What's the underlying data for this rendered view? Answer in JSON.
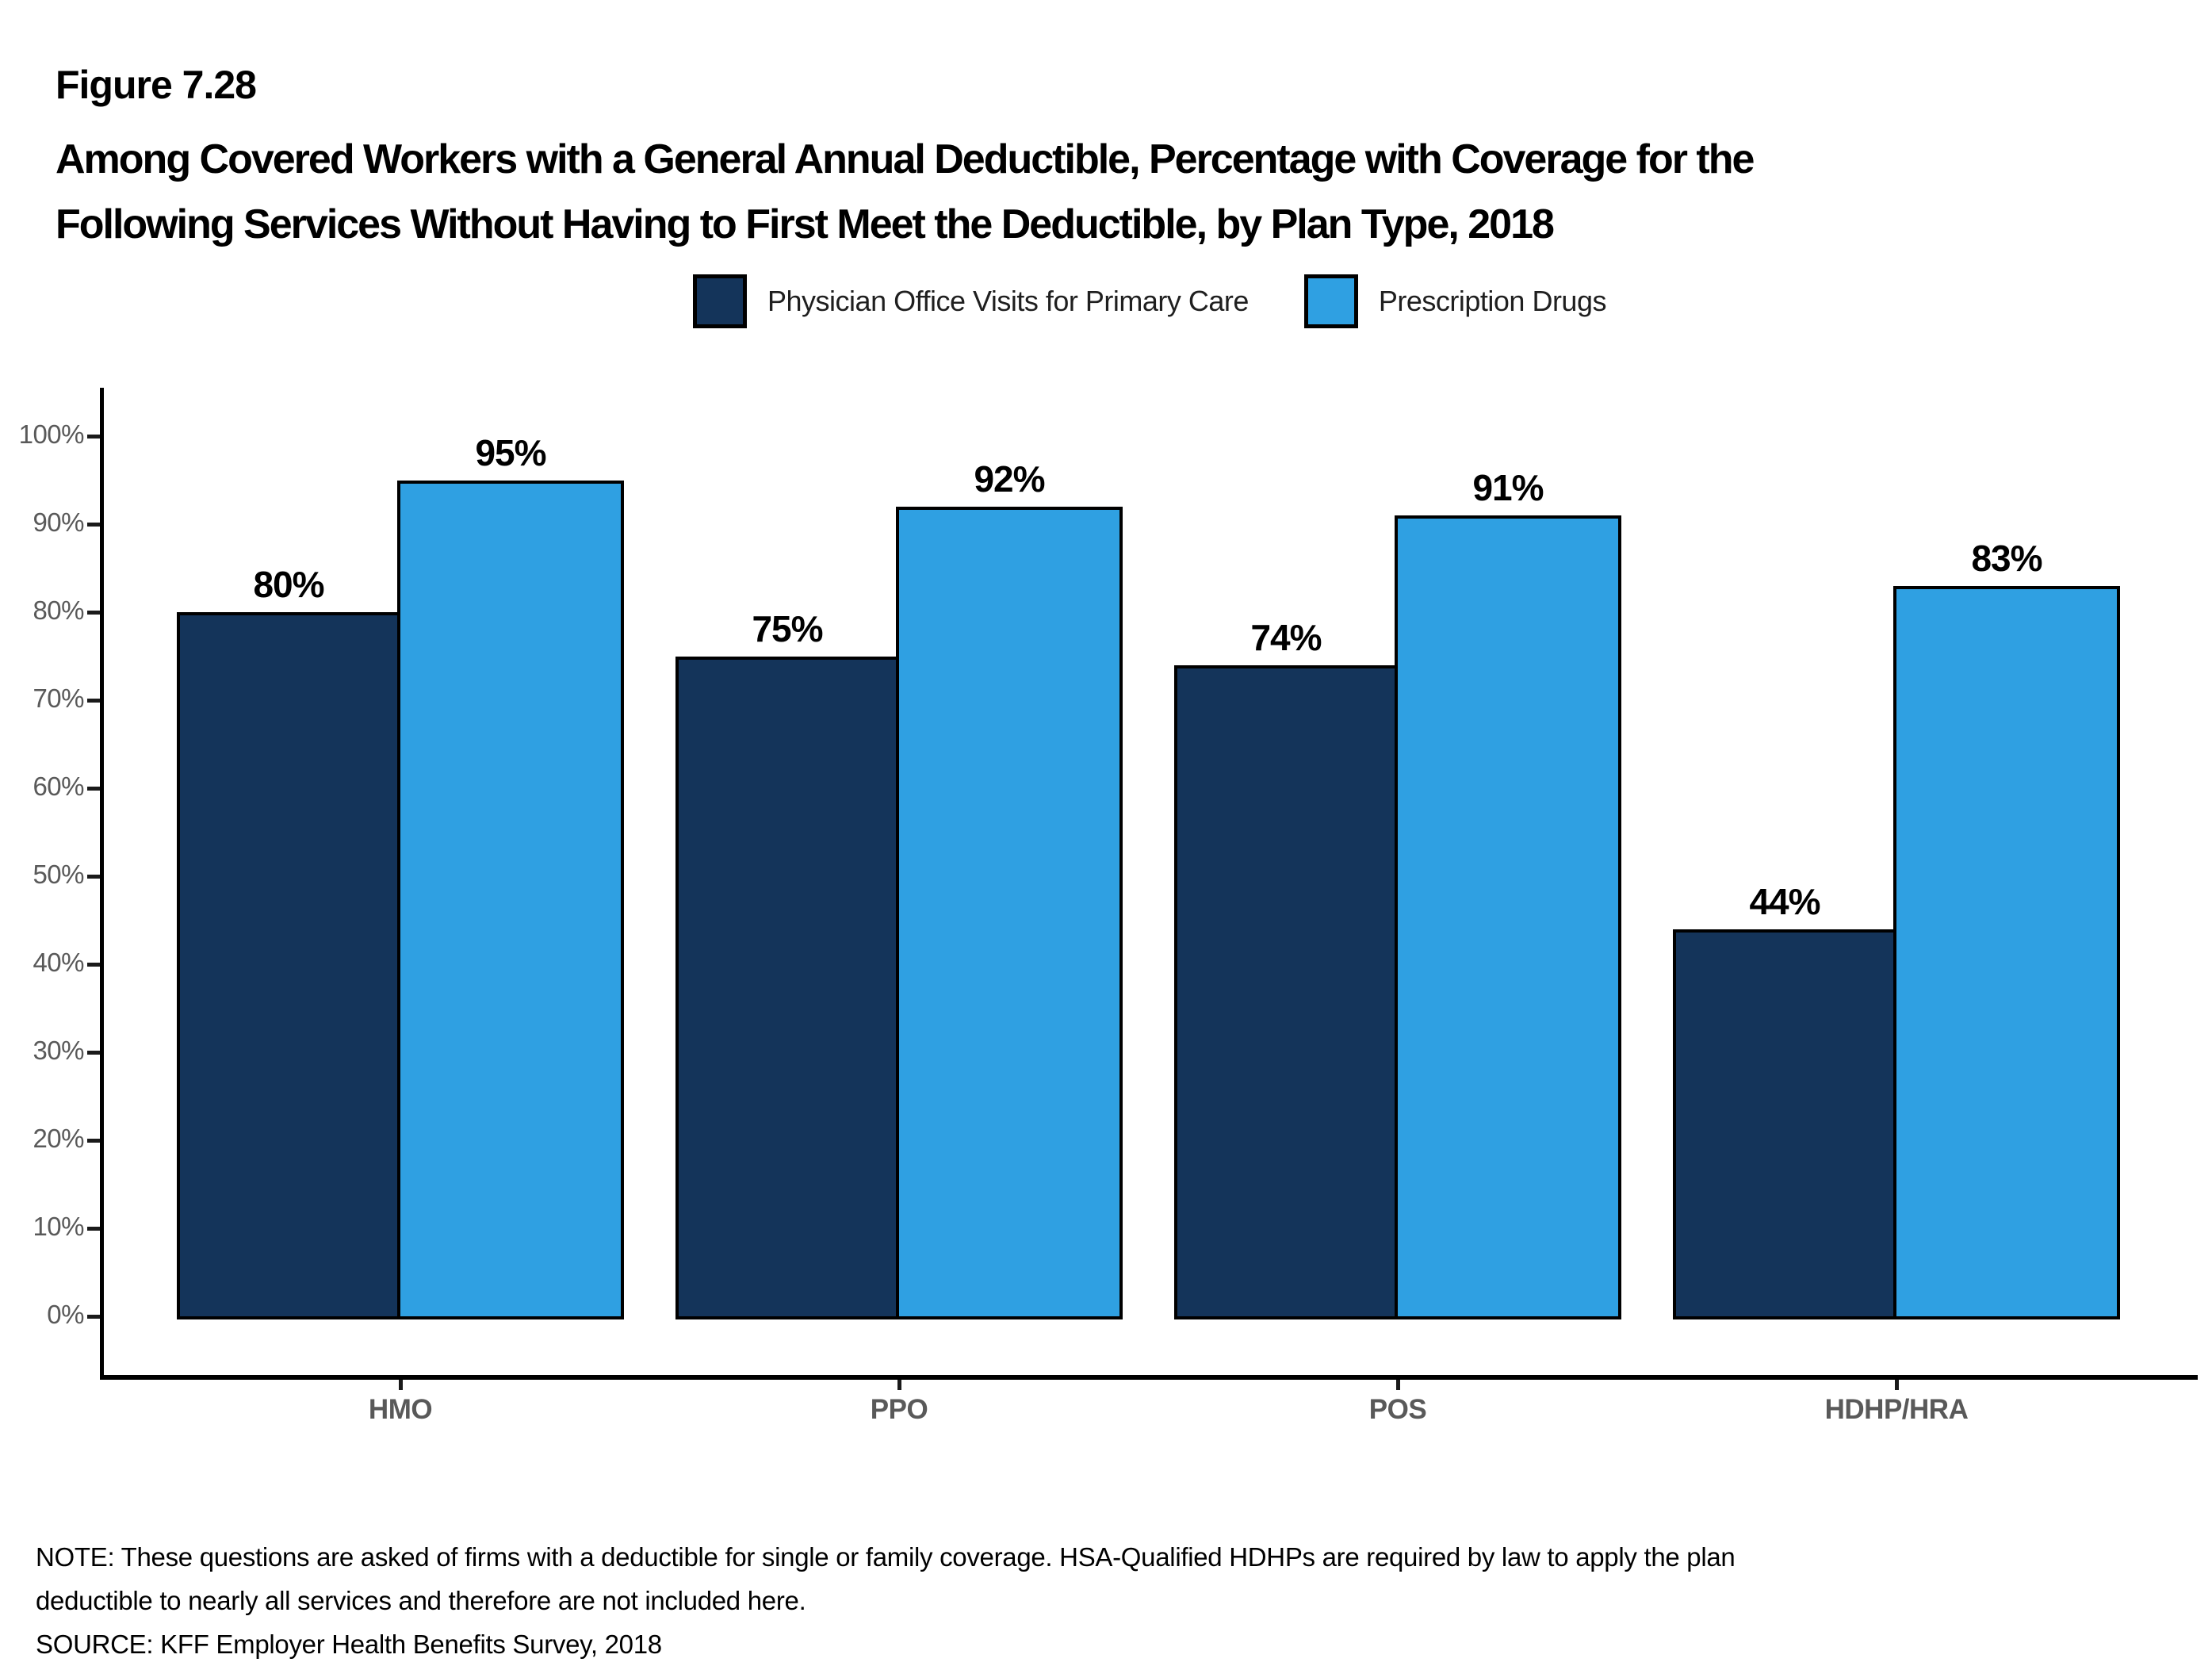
{
  "figure": {
    "number": "Figure 7.28",
    "title_line1": "Among Covered Workers with a General Annual Deductible, Percentage with Coverage for the",
    "title_line2": "Following Services Without Having to First Meet the Deductible, by Plan Type, 2018"
  },
  "chart_data": {
    "type": "bar",
    "title": "Among Covered Workers with a General Annual Deductible, Percentage with Coverage for the Following Services Without Having to First Meet the Deductible, by Plan Type, 2018",
    "categories": [
      "HMO",
      "PPO",
      "POS",
      "HDHP/HRA"
    ],
    "series": [
      {
        "name": "Physician Office Visits for Primary Care",
        "color": "#14345A",
        "values": [
          80,
          75,
          74,
          44
        ]
      },
      {
        "name": "Prescription Drugs",
        "color": "#2FA0E2",
        "values": [
          95,
          92,
          91,
          83
        ]
      }
    ],
    "xlabel": "",
    "ylabel": "",
    "ylim": [
      0,
      100
    ],
    "ytick_step": 10,
    "ytick_labels": [
      "0%",
      "10%",
      "20%",
      "30%",
      "40%",
      "50%",
      "60%",
      "70%",
      "80%",
      "90%",
      "100%"
    ],
    "data_label_suffix": "%",
    "grid": false,
    "legend_position": "top",
    "bar_outline_color": "#000000",
    "axis_color": "#000000",
    "tick_label_color": "#595959"
  },
  "notes": {
    "line1": "NOTE: These questions are asked of firms with a deductible for single or family coverage. HSA-Qualified HDHPs are required by law to apply the plan",
    "line2": "deductible to nearly all services and therefore are not included here.",
    "source": "SOURCE: KFF Employer Health Benefits Survey, 2018"
  }
}
